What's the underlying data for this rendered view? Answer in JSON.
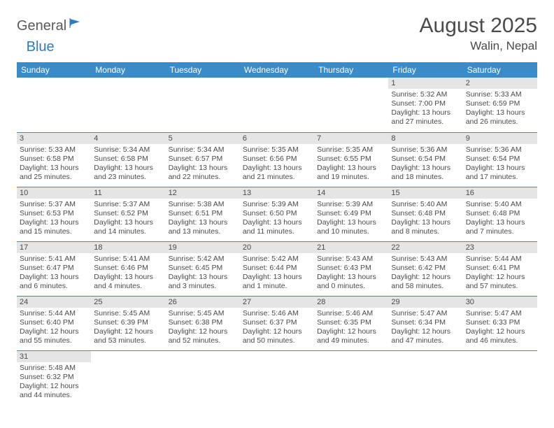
{
  "logo": {
    "part1": "General",
    "part2": "Blue"
  },
  "title": "August 2025",
  "location": "Walin, Nepal",
  "colors": {
    "header_bg": "#3b8bc8",
    "header_fg": "#ffffff",
    "daynum_bg": "#e5e5e5",
    "text": "#4a4a4a",
    "rule": "#3b8bc8"
  },
  "weekdays": [
    "Sunday",
    "Monday",
    "Tuesday",
    "Wednesday",
    "Thursday",
    "Friday",
    "Saturday"
  ],
  "grid": [
    [
      null,
      null,
      null,
      null,
      null,
      {
        "n": "1",
        "sr": "5:32 AM",
        "ss": "7:00 PM",
        "dl": "13 hours and 27 minutes."
      },
      {
        "n": "2",
        "sr": "5:33 AM",
        "ss": "6:59 PM",
        "dl": "13 hours and 26 minutes."
      }
    ],
    [
      {
        "n": "3",
        "sr": "5:33 AM",
        "ss": "6:58 PM",
        "dl": "13 hours and 25 minutes."
      },
      {
        "n": "4",
        "sr": "5:34 AM",
        "ss": "6:58 PM",
        "dl": "13 hours and 23 minutes."
      },
      {
        "n": "5",
        "sr": "5:34 AM",
        "ss": "6:57 PM",
        "dl": "13 hours and 22 minutes."
      },
      {
        "n": "6",
        "sr": "5:35 AM",
        "ss": "6:56 PM",
        "dl": "13 hours and 21 minutes."
      },
      {
        "n": "7",
        "sr": "5:35 AM",
        "ss": "6:55 PM",
        "dl": "13 hours and 19 minutes."
      },
      {
        "n": "8",
        "sr": "5:36 AM",
        "ss": "6:54 PM",
        "dl": "13 hours and 18 minutes."
      },
      {
        "n": "9",
        "sr": "5:36 AM",
        "ss": "6:54 PM",
        "dl": "13 hours and 17 minutes."
      }
    ],
    [
      {
        "n": "10",
        "sr": "5:37 AM",
        "ss": "6:53 PM",
        "dl": "13 hours and 15 minutes."
      },
      {
        "n": "11",
        "sr": "5:37 AM",
        "ss": "6:52 PM",
        "dl": "13 hours and 14 minutes."
      },
      {
        "n": "12",
        "sr": "5:38 AM",
        "ss": "6:51 PM",
        "dl": "13 hours and 13 minutes."
      },
      {
        "n": "13",
        "sr": "5:39 AM",
        "ss": "6:50 PM",
        "dl": "13 hours and 11 minutes."
      },
      {
        "n": "14",
        "sr": "5:39 AM",
        "ss": "6:49 PM",
        "dl": "13 hours and 10 minutes."
      },
      {
        "n": "15",
        "sr": "5:40 AM",
        "ss": "6:48 PM",
        "dl": "13 hours and 8 minutes."
      },
      {
        "n": "16",
        "sr": "5:40 AM",
        "ss": "6:48 PM",
        "dl": "13 hours and 7 minutes."
      }
    ],
    [
      {
        "n": "17",
        "sr": "5:41 AM",
        "ss": "6:47 PM",
        "dl": "13 hours and 6 minutes."
      },
      {
        "n": "18",
        "sr": "5:41 AM",
        "ss": "6:46 PM",
        "dl": "13 hours and 4 minutes."
      },
      {
        "n": "19",
        "sr": "5:42 AM",
        "ss": "6:45 PM",
        "dl": "13 hours and 3 minutes."
      },
      {
        "n": "20",
        "sr": "5:42 AM",
        "ss": "6:44 PM",
        "dl": "13 hours and 1 minute."
      },
      {
        "n": "21",
        "sr": "5:43 AM",
        "ss": "6:43 PM",
        "dl": "13 hours and 0 minutes."
      },
      {
        "n": "22",
        "sr": "5:43 AM",
        "ss": "6:42 PM",
        "dl": "12 hours and 58 minutes."
      },
      {
        "n": "23",
        "sr": "5:44 AM",
        "ss": "6:41 PM",
        "dl": "12 hours and 57 minutes."
      }
    ],
    [
      {
        "n": "24",
        "sr": "5:44 AM",
        "ss": "6:40 PM",
        "dl": "12 hours and 55 minutes."
      },
      {
        "n": "25",
        "sr": "5:45 AM",
        "ss": "6:39 PM",
        "dl": "12 hours and 53 minutes."
      },
      {
        "n": "26",
        "sr": "5:45 AM",
        "ss": "6:38 PM",
        "dl": "12 hours and 52 minutes."
      },
      {
        "n": "27",
        "sr": "5:46 AM",
        "ss": "6:37 PM",
        "dl": "12 hours and 50 minutes."
      },
      {
        "n": "28",
        "sr": "5:46 AM",
        "ss": "6:35 PM",
        "dl": "12 hours and 49 minutes."
      },
      {
        "n": "29",
        "sr": "5:47 AM",
        "ss": "6:34 PM",
        "dl": "12 hours and 47 minutes."
      },
      {
        "n": "30",
        "sr": "5:47 AM",
        "ss": "6:33 PM",
        "dl": "12 hours and 46 minutes."
      }
    ],
    [
      {
        "n": "31",
        "sr": "5:48 AM",
        "ss": "6:32 PM",
        "dl": "12 hours and 44 minutes."
      },
      null,
      null,
      null,
      null,
      null,
      null
    ]
  ],
  "labels": {
    "sunrise": "Sunrise: ",
    "sunset": "Sunset: ",
    "daylight": "Daylight: "
  }
}
